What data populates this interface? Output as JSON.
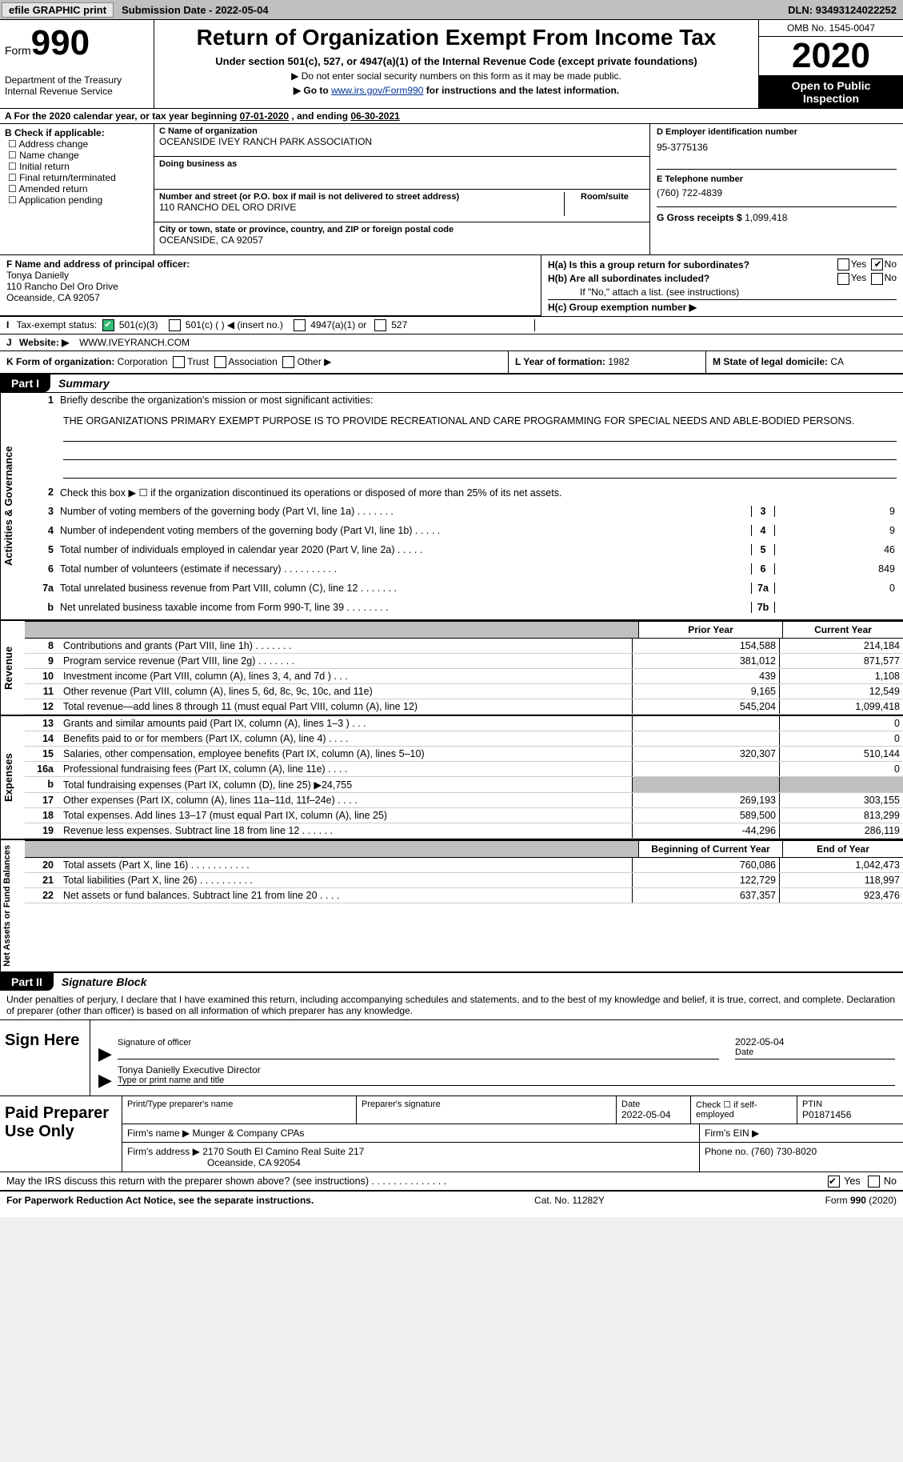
{
  "topbar": {
    "efile": "efile GRAPHIC print",
    "subdate_label": "Submission Date - ",
    "subdate": "2022-05-04",
    "dln_label": "DLN: ",
    "dln": "93493124022252"
  },
  "header": {
    "form_prefix": "Form",
    "form_no": "990",
    "dept": "Department of the Treasury\nInternal Revenue Service",
    "title": "Return of Organization Exempt From Income Tax",
    "sub1": "Under section 501(c), 527, or 4947(a)(1) of the Internal Revenue Code (except private foundations)",
    "sub2": "▶ Do not enter social security numbers on this form as it may be made public.",
    "sub3_pre": "▶ Go to ",
    "sub3_link": "www.irs.gov/Form990",
    "sub3_post": " for instructions and the latest information.",
    "omb": "OMB No. 1545-0047",
    "year": "2020",
    "open1": "Open to Public",
    "open2": "Inspection"
  },
  "period": {
    "label_a": "A For the 2020 calendar year, or tax year beginning ",
    "begin": "07-01-2020",
    "mid": " , and ending ",
    "end": "06-30-2021"
  },
  "b": {
    "label": "B Check if applicable:",
    "opts": [
      "Address change",
      "Name change",
      "Initial return",
      "Final return/terminated",
      "Amended return",
      "Application pending"
    ]
  },
  "c": {
    "name_hint": "C Name of organization",
    "name": "OCEANSIDE IVEY RANCH PARK ASSOCIATION",
    "dba_hint": "Doing business as",
    "dba": "",
    "addr_hint": "Number and street (or P.O. box if mail is not delivered to street address)",
    "room_hint": "Room/suite",
    "addr": "110 RANCHO DEL ORO DRIVE",
    "city_hint": "City or town, state or province, country, and ZIP or foreign postal code",
    "city": "OCEANSIDE, CA  92057"
  },
  "d": {
    "ein_hint": "D Employer identification number",
    "ein": "95-3775136",
    "phone_hint": "E Telephone number",
    "phone": "(760) 722-4839",
    "gross_hint": "G Gross receipts $ ",
    "gross": "1,099,418"
  },
  "f": {
    "hint": "F Name and address of principal officer:",
    "name": "Tonya Danielly",
    "addr1": "110 Rancho Del Oro Drive",
    "addr2": "Oceanside, CA  92057"
  },
  "h": {
    "a_label": "H(a)  Is this a group return for subordinates?",
    "a_yes": "Yes",
    "a_no": "No",
    "b_label": "H(b)  Are all subordinates included?",
    "b_yes": "Yes",
    "b_no": "No",
    "b_note": "If \"No,\" attach a list. (see instructions)",
    "c_label": "H(c)  Group exemption number ▶"
  },
  "i": {
    "label": "Tax-exempt status:",
    "o1": "501(c)(3)",
    "o2": "501(c) (  ) ◀ (insert no.)",
    "o3": "4947(a)(1) or",
    "o4": "527"
  },
  "j": {
    "label": "Website: ▶",
    "value": "WWW.IVEYRANCH.COM"
  },
  "k": {
    "label": "K Form of organization:",
    "o1": "Corporation",
    "o2": "Trust",
    "o3": "Association",
    "o4": "Other ▶"
  },
  "l": {
    "label": "L Year of formation: ",
    "value": "1982"
  },
  "m": {
    "label": "M State of legal domicile: ",
    "value": "CA"
  },
  "part1": {
    "tag": "Part I",
    "title": "Summary",
    "v1": "Activities & Governance",
    "v2": "Revenue",
    "v3": "Expenses",
    "v4": "Net Assets or Fund Balances",
    "l1": "Briefly describe the organization's mission or most significant activities:",
    "l1_text": "THE ORGANIZATIONS PRIMARY EXEMPT PURPOSE IS TO PROVIDE RECREATIONAL AND CARE PROGRAMMING FOR SPECIAL NEEDS AND ABLE-BODIED PERSONS.",
    "l2": "Check this box ▶ ☐  if the organization discontinued its operations or disposed of more than 25% of its net assets.",
    "rows3_7": [
      {
        "no": "3",
        "txt": "Number of voting members of the governing body (Part VI, line 1a)   .     .     .     .     .     .     .",
        "k": "3",
        "v": "9"
      },
      {
        "no": "4",
        "txt": "Number of independent voting members of the governing body (Part VI, line 1b)    .     .     .     .     .",
        "k": "4",
        "v": "9"
      },
      {
        "no": "5",
        "txt": "Total number of individuals employed in calendar year 2020 (Part V, line 2a)   .     .     .     .     .",
        "k": "5",
        "v": "46"
      },
      {
        "no": "6",
        "txt": "Total number of volunteers (estimate if necessary)   .     .     .     .     .     .     .     .     .     .",
        "k": "6",
        "v": "849"
      },
      {
        "no": "7a",
        "txt": "Total unrelated business revenue from Part VIII, column (C), line 12   .     .     .     .     .     .     .",
        "k": "7a",
        "v": "0"
      },
      {
        "no": "b",
        "txt": "Net unrelated business taxable income from Form 990-T, line 39   .     .     .     .     .     .     .     .",
        "k": "7b",
        "v": ""
      }
    ],
    "col_hdr1": "Prior Year",
    "col_hdr2": "Current Year",
    "rev": [
      {
        "no": "8",
        "txt": "Contributions and grants (Part VIII, line 1h)   .     .     .     .     .     .     .",
        "p": "154,588",
        "c": "214,184"
      },
      {
        "no": "9",
        "txt": "Program service revenue (Part VIII, line 2g)   .     .     .     .     .     .     .",
        "p": "381,012",
        "c": "871,577"
      },
      {
        "no": "10",
        "txt": "Investment income (Part VIII, column (A), lines 3, 4, and 7d )   .     .     .",
        "p": "439",
        "c": "1,108"
      },
      {
        "no": "11",
        "txt": "Other revenue (Part VIII, column (A), lines 5, 6d, 8c, 9c, 10c, and 11e)",
        "p": "9,165",
        "c": "12,549"
      },
      {
        "no": "12",
        "txt": "Total revenue—add lines 8 through 11 (must equal Part VIII, column (A), line 12)",
        "p": "545,204",
        "c": "1,099,418"
      }
    ],
    "exp": [
      {
        "no": "13",
        "txt": "Grants and similar amounts paid (Part IX, column (A), lines 1–3 )   .    .    .",
        "p": "",
        "c": "0"
      },
      {
        "no": "14",
        "txt": "Benefits paid to or for members (Part IX, column (A), line 4)   .     .     .     .",
        "p": "",
        "c": "0"
      },
      {
        "no": "15",
        "txt": "Salaries, other compensation, employee benefits (Part IX, column (A), lines 5–10)",
        "p": "320,307",
        "c": "510,144"
      },
      {
        "no": "16a",
        "txt": "Professional fundraising fees (Part IX, column (A), line 11e)   .     .     .     .",
        "p": "",
        "c": "0"
      },
      {
        "no": "b",
        "txt": "Total fundraising expenses (Part IX, column (D), line 25) ▶24,755",
        "p": "GREY",
        "c": "GREY"
      },
      {
        "no": "17",
        "txt": "Other expenses (Part IX, column (A), lines 11a–11d, 11f–24e)   .     .     .     .",
        "p": "269,193",
        "c": "303,155"
      },
      {
        "no": "18",
        "txt": "Total expenses. Add lines 13–17 (must equal Part IX, column (A), line 25)",
        "p": "589,500",
        "c": "813,299"
      },
      {
        "no": "19",
        "txt": "Revenue less expenses. Subtract line 18 from line 12   .     .     .     .     .     .",
        "p": "-44,296",
        "c": "286,119"
      }
    ],
    "na_hdr1": "Beginning of Current Year",
    "na_hdr2": "End of Year",
    "na": [
      {
        "no": "20",
        "txt": "Total assets (Part X, line 16)   .     .     .     .     .     .     .     .     .     .     .",
        "p": "760,086",
        "c": "1,042,473"
      },
      {
        "no": "21",
        "txt": "Total liabilities (Part X, line 26)   .     .     .     .     .     .     .     .     .     .",
        "p": "122,729",
        "c": "118,997"
      },
      {
        "no": "22",
        "txt": "Net assets or fund balances. Subtract line 21 from line 20   .     .     .     .",
        "p": "637,357",
        "c": "923,476"
      }
    ]
  },
  "part2": {
    "tag": "Part II",
    "title": "Signature Block",
    "note": "Under penalties of perjury, I declare that I have examined this return, including accompanying schedules and statements, and to the best of my knowledge and belief, it is true, correct, and complete. Declaration of preparer (other than officer) is based on all information of which preparer has any knowledge.",
    "sign_here": "Sign Here",
    "sig_of_officer": "Signature of officer",
    "date_label": "Date",
    "date": "2022-05-04",
    "typed": "Tonya Danielly  Executive Director",
    "typed_hint": "Type or print name and title"
  },
  "prep": {
    "label": "Paid Preparer Use Only",
    "h_print": "Print/Type preparer's name",
    "h_sig": "Preparer's signature",
    "h_date": "Date",
    "date": "2022-05-04",
    "h_check": "Check ☐ if self-employed",
    "h_ptin": "PTIN",
    "ptin": "P01871456",
    "firm_name_l": "Firm's name     ▶",
    "firm_name": "Munger & Company CPAs",
    "firm_ein_l": "Firm's EIN ▶",
    "firm_addr_l": "Firm's address ▶",
    "firm_addr1": "2170 South El Camino Real Suite 217",
    "firm_addr2": "Oceanside, CA  92054",
    "firm_phone_l": "Phone no. ",
    "firm_phone": "(760) 730-8020"
  },
  "irs_q": {
    "txt": "May the IRS discuss this return with the preparer shown above? (see instructions)   .     .     .     .     .     .     .     .     .     .     .     .     .     .",
    "yes": "Yes",
    "no": "No"
  },
  "footer": {
    "left": "For Paperwork Reduction Act Notice, see the separate instructions.",
    "mid": "Cat. No. 11282Y",
    "right_pre": "Form ",
    "right_form": "990",
    "right_post": " (2020)"
  }
}
